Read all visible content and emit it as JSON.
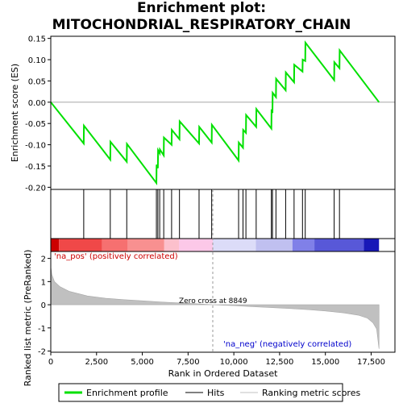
{
  "title_line1": "Enrichment plot:",
  "title_line2": "MITOCHONDRIAL_RESPIRATORY_CHAIN",
  "colors": {
    "es_line": "#00e000",
    "hits": "#000000",
    "metric_fill": "#c0c0c0",
    "pos_label": "#cc0000",
    "neg_label": "#0000cc"
  },
  "chart_data": [
    {
      "type": "line",
      "panel": "enrichment_profile",
      "ylabel": "Enrichment score (ES)",
      "xlim": [
        0,
        18800
      ],
      "ylim": [
        -0.205,
        0.155
      ],
      "yticks": [
        0.15,
        0.1,
        0.05,
        0.0,
        -0.05,
        -0.1,
        -0.15,
        -0.2
      ],
      "ytick_labels": [
        "0.15",
        "0.10",
        "0.05",
        "0.00",
        "-0.05",
        "-0.10",
        "-0.15",
        "-0.20"
      ],
      "series": [
        {
          "name": "Enrichment profile",
          "x": [
            0,
            1800,
            1810,
            3250,
            3260,
            4150,
            4160,
            5770,
            5780,
            5850,
            5860,
            5950,
            5960,
            6170,
            6180,
            6600,
            6610,
            7030,
            7040,
            8100,
            8110,
            8790,
            8800,
            10260,
            10270,
            10500,
            10510,
            10660,
            10670,
            11220,
            11230,
            12050,
            12060,
            12110,
            12120,
            12300,
            12310,
            12830,
            12840,
            13290,
            13300,
            13750,
            13760,
            13900,
            13910,
            15480,
            15490,
            15770,
            15780,
            17930
          ],
          "y": [
            0.0,
            -0.097,
            -0.055,
            -0.135,
            -0.093,
            -0.14,
            -0.098,
            -0.19,
            -0.147,
            -0.155,
            -0.113,
            -0.12,
            -0.111,
            -0.125,
            -0.083,
            -0.1,
            -0.065,
            -0.087,
            -0.045,
            -0.097,
            -0.058,
            -0.095,
            -0.053,
            -0.137,
            -0.095,
            -0.107,
            -0.065,
            -0.072,
            -0.03,
            -0.058,
            -0.016,
            -0.062,
            -0.02,
            -0.022,
            0.022,
            0.012,
            0.055,
            0.028,
            0.07,
            0.047,
            0.088,
            0.072,
            0.1,
            0.097,
            0.14,
            0.052,
            0.094,
            0.08,
            0.122,
            0.0
          ]
        }
      ]
    },
    {
      "type": "scatter",
      "panel": "hits",
      "series": [
        {
          "name": "Hits",
          "x": [
            1800,
            3250,
            4150,
            5770,
            5850,
            5950,
            6170,
            6600,
            7030,
            8100,
            8790,
            10260,
            10500,
            10660,
            11220,
            12050,
            12110,
            12300,
            12830,
            13290,
            13750,
            13900,
            15480,
            15770
          ]
        }
      ]
    },
    {
      "type": "area",
      "panel": "ranked_list_metric",
      "xlabel": "Rank in Ordered Dataset",
      "ylabel": "Ranked list metric (PreRanked)",
      "xlim": [
        0,
        18800
      ],
      "ylim": [
        -2.05,
        2.3
      ],
      "yticks": [
        2,
        1,
        0,
        -1,
        -2
      ],
      "ytick_labels": [
        "2",
        "1",
        "0",
        "-1",
        "-2"
      ],
      "xticks": [
        0,
        2500,
        5000,
        7500,
        10000,
        12500,
        15000,
        17500
      ],
      "xtick_labels": [
        "0",
        "2,500",
        "5,000",
        "7,500",
        "10,000",
        "12,500",
        "15,000",
        "17,500"
      ],
      "series": [
        {
          "name": "Ranking metric scores",
          "x": [
            0,
            60,
            200,
            500,
            1000,
            2000,
            3000,
            4000,
            5000,
            6000,
            7000,
            8000,
            8849,
            10000,
            11000,
            12000,
            13000,
            14000,
            15000,
            16000,
            16800,
            17300,
            17600,
            17800,
            17930
          ],
          "y": [
            1.65,
            1.3,
            1.0,
            0.78,
            0.58,
            0.38,
            0.28,
            0.22,
            0.17,
            0.12,
            0.08,
            0.04,
            0.0,
            -0.04,
            -0.08,
            -0.12,
            -0.16,
            -0.21,
            -0.27,
            -0.35,
            -0.45,
            -0.58,
            -0.78,
            -1.05,
            -1.9
          ]
        }
      ],
      "annotations": {
        "zero_cross": "Zero cross at 8849",
        "zero_cross_x": 8849,
        "pos_label": "'na_pos' (positively correlated)",
        "neg_label": "'na_neg' (negatively correlated)"
      }
    }
  ],
  "heatmap_bar": [
    {
      "x0": 0,
      "x1": 450,
      "color": "#cc0000"
    },
    {
      "x0": 450,
      "x1": 2800,
      "color": "#f04848"
    },
    {
      "x0": 2800,
      "x1": 4200,
      "color": "#f67070"
    },
    {
      "x0": 4200,
      "x1": 6200,
      "color": "#f89090"
    },
    {
      "x0": 6200,
      "x1": 7000,
      "color": "#fcc0cc"
    },
    {
      "x0": 7000,
      "x1": 8849,
      "color": "#fcc8e8"
    },
    {
      "x0": 8849,
      "x1": 11200,
      "color": "#dcdcf8"
    },
    {
      "x0": 11200,
      "x1": 13200,
      "color": "#c0c0f0"
    },
    {
      "x0": 13200,
      "x1": 14400,
      "color": "#8080e8"
    },
    {
      "x0": 14400,
      "x1": 17100,
      "color": "#5858d8"
    },
    {
      "x0": 17100,
      "x1": 17930,
      "color": "#1818b8"
    }
  ],
  "legend": [
    {
      "label": "Enrichment profile",
      "color": "#00e000"
    },
    {
      "label": "Hits",
      "color": "#000000"
    },
    {
      "label": "Ranking metric scores",
      "color": "#c0c0c0"
    }
  ]
}
